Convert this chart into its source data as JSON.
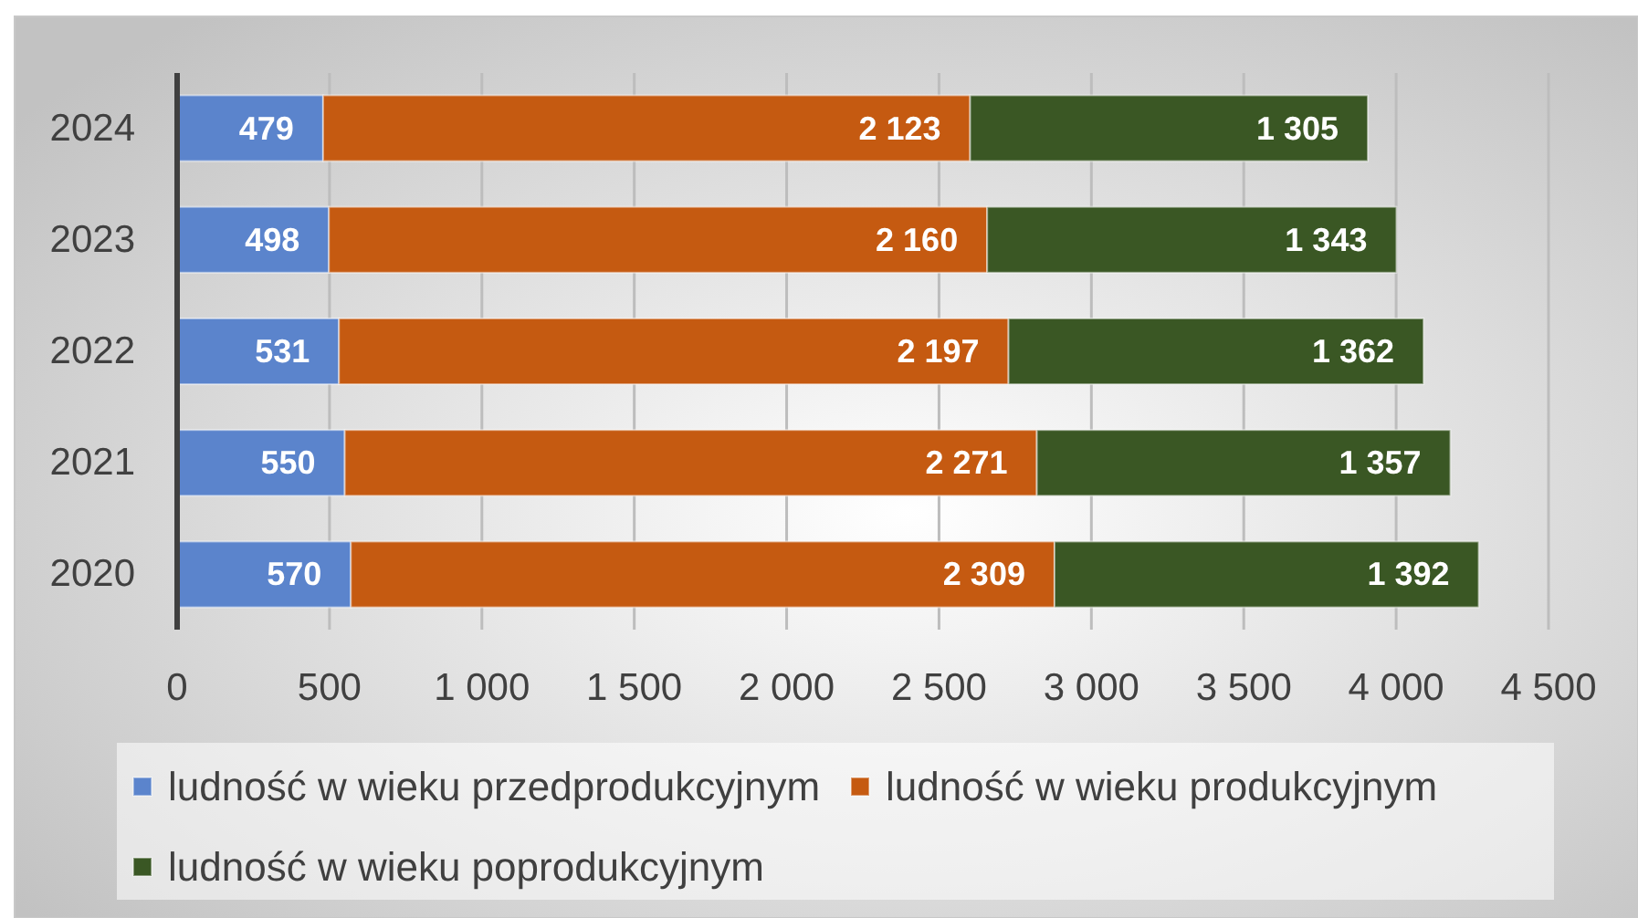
{
  "chart_data": {
    "type": "bar",
    "orientation": "horizontal",
    "stacked": true,
    "categories": [
      "2024",
      "2023",
      "2022",
      "2021",
      "2020"
    ],
    "series": [
      {
        "name": "ludność w wieku przedprodukcyjnym",
        "color": "#5b84cc",
        "values": [
          479,
          498,
          531,
          550,
          570
        ],
        "value_labels": [
          "479",
          "498",
          "531",
          "550",
          "570"
        ]
      },
      {
        "name": "ludność w wieku produkcyjnym",
        "color": "#c55a11",
        "values": [
          2123,
          2160,
          2197,
          2271,
          2309
        ],
        "value_labels": [
          "2 123",
          "2 160",
          "2 197",
          "2 271",
          "2 309"
        ]
      },
      {
        "name": "ludność w wieku poprodukcyjnym",
        "color": "#3a5724",
        "values": [
          1305,
          1343,
          1362,
          1357,
          1392
        ],
        "value_labels": [
          "1 305",
          "1 343",
          "1 362",
          "1 357",
          "1 392"
        ]
      }
    ],
    "xlim": [
      0,
      4500
    ],
    "xticks": [
      0,
      500,
      {
        "value": 1000,
        "label": "1 000"
      },
      {
        "value": 1500,
        "label": "1 500"
      },
      {
        "value": 2000,
        "label": "2 000"
      },
      {
        "value": 2500,
        "label": "2 500"
      },
      {
        "value": 3000,
        "label": "3 000"
      },
      {
        "value": 3500,
        "label": "3 500"
      },
      {
        "value": 4000,
        "label": "4 000"
      },
      {
        "value": 4500,
        "label": "4 500"
      }
    ],
    "grid": "x",
    "legend": "bottom"
  }
}
